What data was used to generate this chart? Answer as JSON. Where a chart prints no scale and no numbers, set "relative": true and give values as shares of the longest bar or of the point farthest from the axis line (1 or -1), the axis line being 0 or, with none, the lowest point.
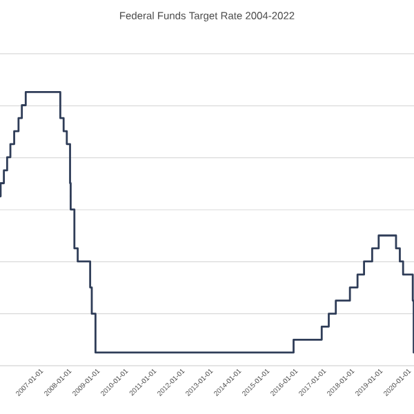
{
  "chart_data": {
    "type": "step",
    "title": "Federal Funds Target Rate 2004-2022",
    "relative": true,
    "grid": "y",
    "marker": "none",
    "line_style": "solid",
    "x": [
      "2005-08-01",
      "2005-08-09",
      "2005-09-20",
      "2005-11-01",
      "2005-12-13",
      "2006-01-31",
      "2006-03-28",
      "2006-05-10",
      "2006-06-29",
      "2007-09-18",
      "2007-10-31",
      "2007-12-11",
      "2008-01-22",
      "2008-01-30",
      "2008-03-18",
      "2008-04-30",
      "2008-10-08",
      "2008-10-29",
      "2008-12-16",
      "2015-12-17",
      "2016-12-15",
      "2017-03-16",
      "2017-06-15",
      "2017-12-14",
      "2018-03-22",
      "2018-06-14",
      "2018-09-27",
      "2018-12-20",
      "2019-08-01",
      "2019-09-19",
      "2019-10-31",
      "2020-03-04",
      "2020-03-16",
      "2020-03-20"
    ],
    "series": [
      {
        "color": "#2f3d58",
        "values": [
          0.619,
          0.667,
          0.714,
          0.762,
          0.81,
          0.857,
          0.905,
          0.952,
          1,
          0.905,
          0.857,
          0.81,
          0.667,
          0.571,
          0.429,
          0.381,
          0.286,
          0.19,
          0.048,
          0.095,
          0.143,
          0.19,
          0.238,
          0.286,
          0.333,
          0.381,
          0.429,
          0.476,
          0.429,
          0.381,
          0.333,
          0.238,
          0.048,
          0.048
        ]
      }
    ],
    "xlim": [
      "2005-08-01",
      "2020-03-20"
    ],
    "xticks": [
      "2007-01-01",
      "2008-01-01",
      "2009-01-01",
      "2010-01-01",
      "2011-01-01",
      "2012-01-01",
      "2013-01-01",
      "2014-01-01",
      "2015-01-01",
      "2016-01-01",
      "2017-01-01",
      "2018-01-01",
      "2019-01-01",
      "2020-01-01"
    ]
  }
}
